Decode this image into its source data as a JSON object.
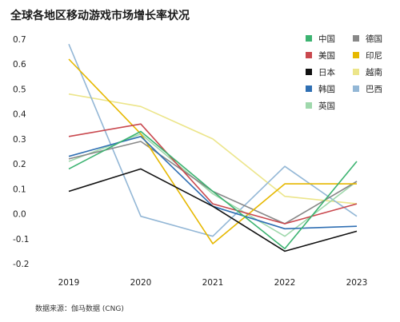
{
  "chart_data": {
    "type": "line",
    "title": "全球各地区移动游戏市场增长率状况",
    "source": "数据来源：伽马数据 (CNG)",
    "x": [
      "2019",
      "2020",
      "2021",
      "2022",
      "2023"
    ],
    "ylim": [
      -0.2,
      0.7
    ],
    "yticks": [
      "0.7",
      "0.6",
      "0.5",
      "0.4",
      "0.3",
      "0.2",
      "0.1",
      "0.0",
      "-0.1",
      "-0.2"
    ],
    "ytick_values": [
      0.7,
      0.6,
      0.5,
      0.4,
      0.3,
      0.2,
      0.1,
      0.0,
      -0.1,
      -0.2
    ],
    "grid": false,
    "legend_position": "top-right",
    "series": [
      {
        "name": "中国",
        "color": "#3cb371",
        "values": [
          0.18,
          0.33,
          0.09,
          -0.14,
          0.21
        ]
      },
      {
        "name": "美国",
        "color": "#c9484e",
        "values": [
          0.31,
          0.36,
          0.04,
          -0.04,
          0.04
        ]
      },
      {
        "name": "日本",
        "color": "#111111",
        "values": [
          0.09,
          0.18,
          0.03,
          -0.15,
          -0.07
        ]
      },
      {
        "name": "韩国",
        "color": "#2f6fb3",
        "values": [
          0.23,
          0.31,
          0.03,
          -0.06,
          -0.05
        ]
      },
      {
        "name": "英国",
        "color": "#9fd8ac",
        "values": [
          0.21,
          0.32,
          0.08,
          -0.09,
          0.13
        ]
      },
      {
        "name": "德国",
        "color": "#888888",
        "values": [
          0.22,
          0.29,
          0.09,
          -0.04,
          0.13
        ]
      },
      {
        "name": "印尼",
        "color": "#e6b800",
        "values": [
          0.62,
          0.32,
          -0.12,
          0.12,
          0.12
        ]
      },
      {
        "name": "越南",
        "color": "#ece58a",
        "values": [
          0.48,
          0.43,
          0.3,
          0.07,
          0.04
        ]
      },
      {
        "name": "巴西",
        "color": "#93b7d6",
        "values": [
          0.68,
          -0.01,
          -0.09,
          0.19,
          -0.01
        ]
      }
    ]
  }
}
